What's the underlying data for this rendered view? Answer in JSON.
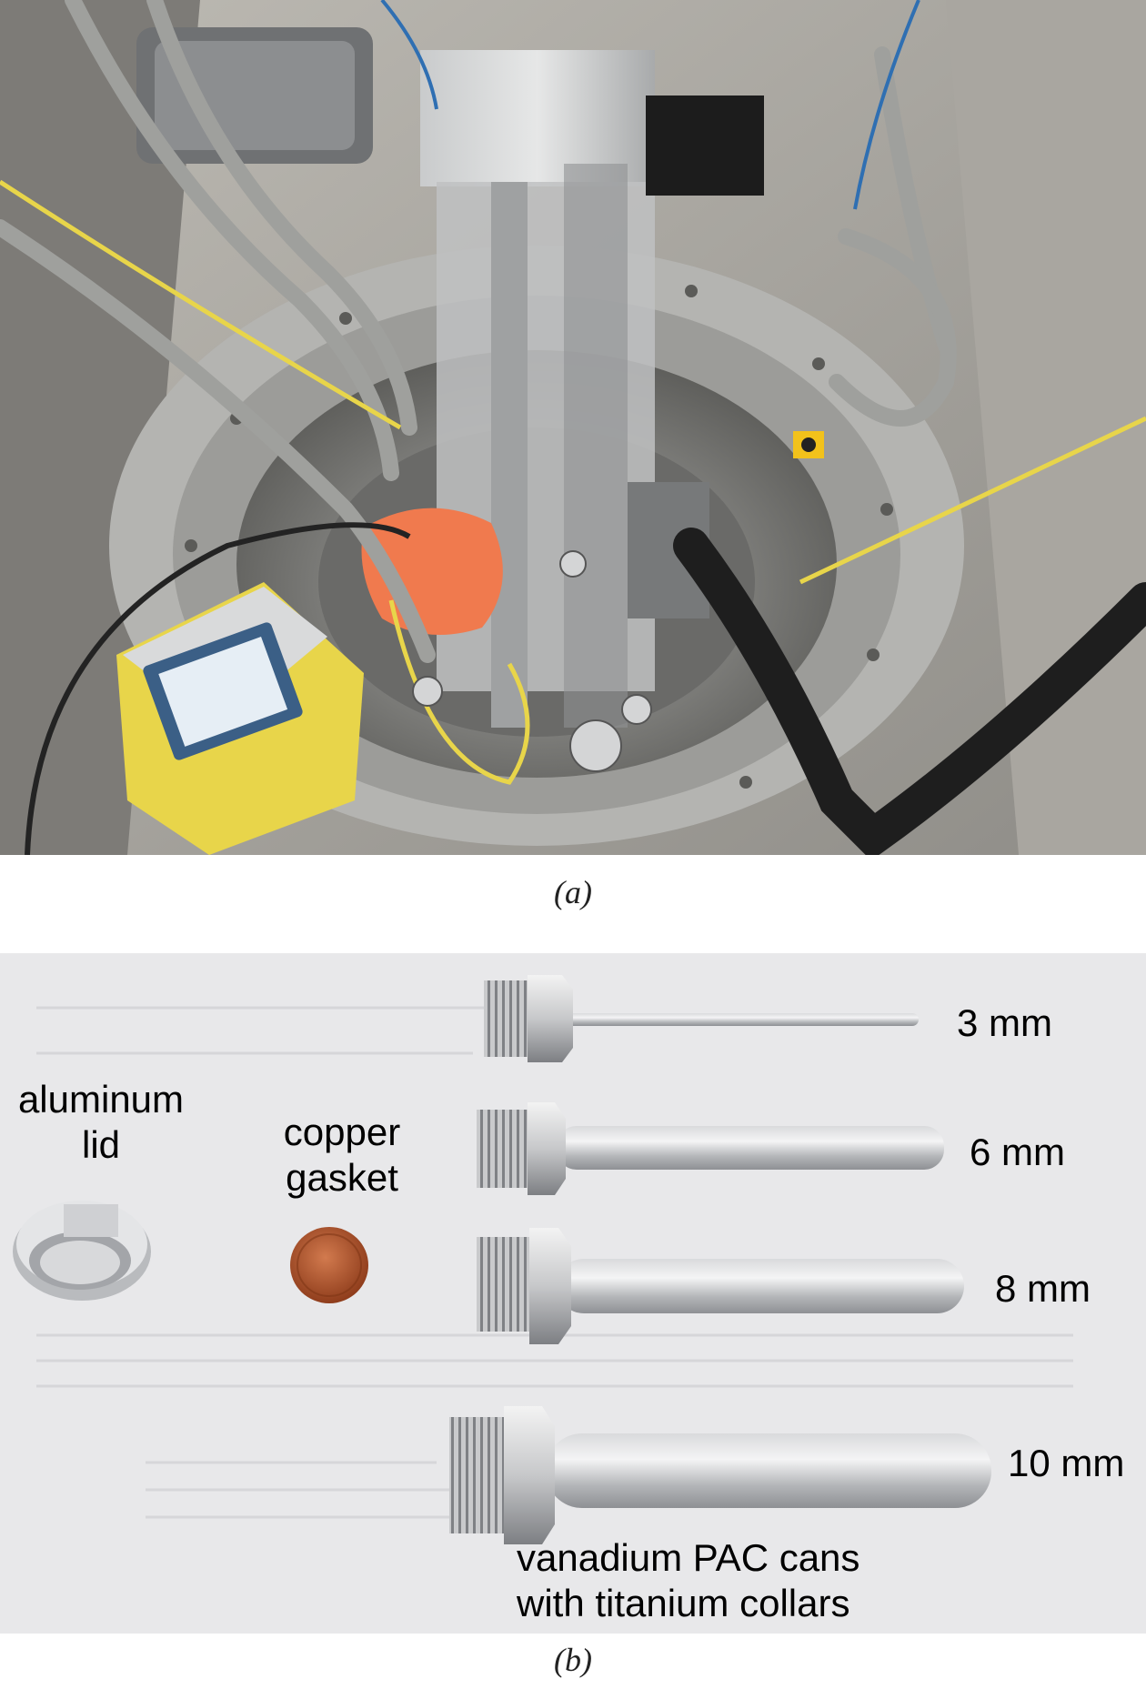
{
  "figure": {
    "panel_a": {
      "caption": "(a)"
    },
    "panel_b": {
      "caption": "(b)",
      "labels": {
        "aluminum_lid_line1": "aluminum",
        "aluminum_lid_line2": "lid",
        "copper_gasket_line1": "copper",
        "copper_gasket_line2": "gasket",
        "can_3mm": "3 mm",
        "can_6mm": "6 mm",
        "can_8mm": "8 mm",
        "can_10mm": "10 mm",
        "cans_line1": "vanadium PAC cans",
        "cans_line2": "with titanium collars"
      }
    }
  },
  "colors": {
    "accent_yellow": "#e8d54a",
    "copper": "#b5562c",
    "steel": "#b9bbbd",
    "orange_bag": "#f07a4e"
  }
}
